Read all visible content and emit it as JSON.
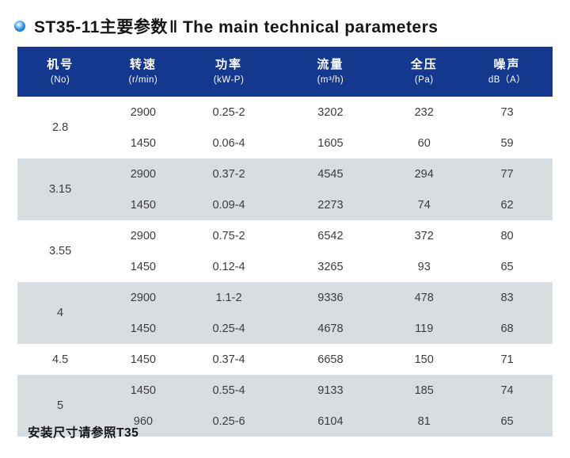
{
  "title": {
    "zh": "ST35-11主要参数",
    "sep": "‖",
    "en": "The main technical parameters"
  },
  "colors": {
    "header_bg": "#14388e",
    "stripe_bg": "#d7dde0",
    "bullet_blue": "#1677d0",
    "cell_text": "#3c3c3c"
  },
  "table": {
    "columns": [
      {
        "zh": "机号",
        "unit": "(No)"
      },
      {
        "zh": "转速",
        "unit": "(r/min)"
      },
      {
        "zh": "功率",
        "unit": "(kW-P)"
      },
      {
        "zh": "流量",
        "unit": "(m³/h)"
      },
      {
        "zh": "全压",
        "unit": "(Pa)"
      },
      {
        "zh": "噪声",
        "unit": "dB（A）"
      }
    ],
    "col_widths": [
      "16%",
      "15%",
      "17%",
      "21%",
      "14%",
      "17%"
    ],
    "groups": [
      {
        "no": "2.8",
        "rows": [
          [
            "2900",
            "0.25-2",
            "3202",
            "232",
            "73"
          ],
          [
            "1450",
            "0.06-4",
            "1605",
            "60",
            "59"
          ]
        ]
      },
      {
        "no": "3.15",
        "rows": [
          [
            "2900",
            "0.37-2",
            "4545",
            "294",
            "77"
          ],
          [
            "1450",
            "0.09-4",
            "2273",
            "74",
            "62"
          ]
        ]
      },
      {
        "no": "3.55",
        "rows": [
          [
            "2900",
            "0.75-2",
            "6542",
            "372",
            "80"
          ],
          [
            "1450",
            "0.12-4",
            "3265",
            "93",
            "65"
          ]
        ]
      },
      {
        "no": "4",
        "rows": [
          [
            "2900",
            "1.1-2",
            "9336",
            "478",
            "83"
          ],
          [
            "1450",
            "0.25-4",
            "4678",
            "119",
            "68"
          ]
        ]
      },
      {
        "no": "4.5",
        "rows": [
          [
            "1450",
            "0.37-4",
            "6658",
            "150",
            "71"
          ]
        ]
      },
      {
        "no": "5",
        "rows": [
          [
            "1450",
            "0.55-4",
            "9133",
            "185",
            "74"
          ],
          [
            "960",
            "0.25-6",
            "6104",
            "81",
            "65"
          ]
        ]
      }
    ]
  },
  "footer": {
    "note": "安装尺寸请参照T35"
  }
}
